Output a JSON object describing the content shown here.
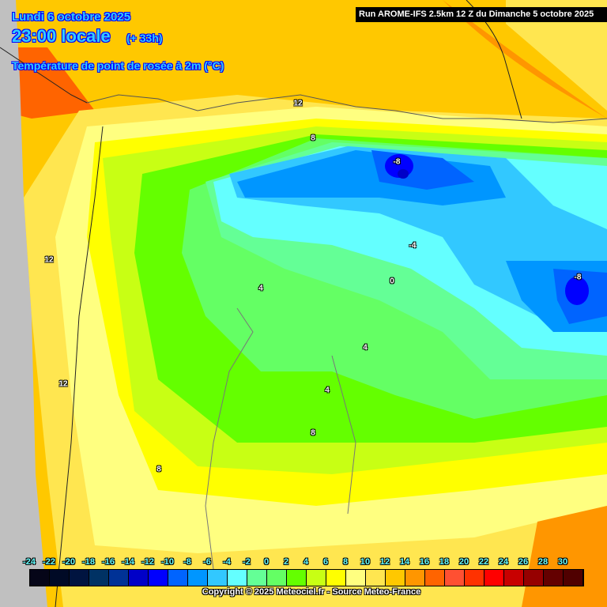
{
  "header": {
    "date": "Lundi 6 octobre 2025",
    "time": "23:00 locale",
    "lead": "(+ 33h)",
    "parameter": "Température de point de rosée à 2m (°C)",
    "run": "Run AROME-IFS 2.5km 12 Z du Dimanche 5 octobre 2025"
  },
  "legend": {
    "labels": [
      "-24",
      "-22",
      "-20",
      "-18",
      "-16",
      "-14",
      "-12",
      "-10",
      "-8",
      "-6",
      "-4",
      "-2",
      "0",
      "2",
      "4",
      "6",
      "8",
      "10",
      "12",
      "14",
      "16",
      "18",
      "20",
      "22",
      "24",
      "26",
      "28",
      "30"
    ],
    "colors": [
      "#050518",
      "#000a26",
      "#001440",
      "#003264",
      "#003296",
      "#0000c8",
      "#0000ff",
      "#0064ff",
      "#0096ff",
      "#32c8ff",
      "#64ffff",
      "#64ff96",
      "#64ff64",
      "#64ff00",
      "#c8ff14",
      "#ffff00",
      "#ffff80",
      "#ffe650",
      "#ffc800",
      "#ff9600",
      "#ff6400",
      "#ff5032",
      "#ff3200",
      "#ff0000",
      "#c80000",
      "#960000",
      "#640000",
      "#500000"
    ]
  },
  "contour_labels": [
    "12",
    "8",
    "-8",
    "-4",
    "0",
    "-8",
    "4",
    "4",
    "4",
    "8",
    "8",
    "12",
    "12"
  ],
  "copyright": "Copyright © 2025 Meteociel.fr - Source Meteo-France"
}
